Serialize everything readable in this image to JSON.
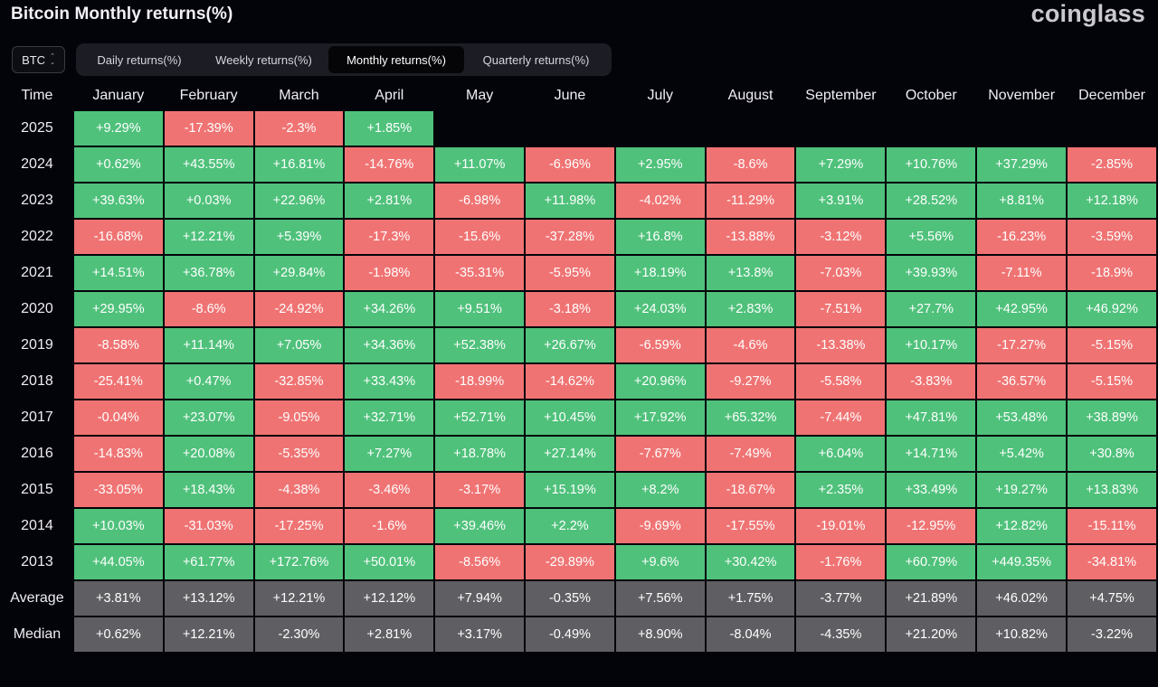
{
  "header": {
    "title": "Bitcoin Monthly returns(%)",
    "logo": "coinglass"
  },
  "asset_select": {
    "value": "BTC",
    "chevron_up": "⌃",
    "chevron_down": "⌄"
  },
  "tabs": [
    {
      "label": "Daily returns(%)",
      "active": false
    },
    {
      "label": "Weekly returns(%)",
      "active": false
    },
    {
      "label": "Monthly returns(%)",
      "active": true
    },
    {
      "label": "Quarterly returns(%)",
      "active": false
    }
  ],
  "colors": {
    "positive": "#4fc17b",
    "negative": "#f07373",
    "stat": "#5f5f63",
    "background": "#03030a"
  },
  "table": {
    "corner_label": "Time",
    "columns": [
      "January",
      "February",
      "March",
      "April",
      "May",
      "June",
      "July",
      "August",
      "September",
      "October",
      "November",
      "December"
    ],
    "rows": [
      {
        "label": "2025",
        "type": "year",
        "values": [
          "+9.29%",
          "-17.39%",
          "-2.3%",
          "+1.85%",
          "",
          "",
          "",
          "",
          "",
          "",
          "",
          ""
        ]
      },
      {
        "label": "2024",
        "type": "year",
        "values": [
          "+0.62%",
          "+43.55%",
          "+16.81%",
          "-14.76%",
          "+11.07%",
          "-6.96%",
          "+2.95%",
          "-8.6%",
          "+7.29%",
          "+10.76%",
          "+37.29%",
          "-2.85%"
        ]
      },
      {
        "label": "2023",
        "type": "year",
        "values": [
          "+39.63%",
          "+0.03%",
          "+22.96%",
          "+2.81%",
          "-6.98%",
          "+11.98%",
          "-4.02%",
          "-11.29%",
          "+3.91%",
          "+28.52%",
          "+8.81%",
          "+12.18%"
        ]
      },
      {
        "label": "2022",
        "type": "year",
        "values": [
          "-16.68%",
          "+12.21%",
          "+5.39%",
          "-17.3%",
          "-15.6%",
          "-37.28%",
          "+16.8%",
          "-13.88%",
          "-3.12%",
          "+5.56%",
          "-16.23%",
          "-3.59%"
        ]
      },
      {
        "label": "2021",
        "type": "year",
        "values": [
          "+14.51%",
          "+36.78%",
          "+29.84%",
          "-1.98%",
          "-35.31%",
          "-5.95%",
          "+18.19%",
          "+13.8%",
          "-7.03%",
          "+39.93%",
          "-7.11%",
          "-18.9%"
        ]
      },
      {
        "label": "2020",
        "type": "year",
        "values": [
          "+29.95%",
          "-8.6%",
          "-24.92%",
          "+34.26%",
          "+9.51%",
          "-3.18%",
          "+24.03%",
          "+2.83%",
          "-7.51%",
          "+27.7%",
          "+42.95%",
          "+46.92%"
        ]
      },
      {
        "label": "2019",
        "type": "year",
        "values": [
          "-8.58%",
          "+11.14%",
          "+7.05%",
          "+34.36%",
          "+52.38%",
          "+26.67%",
          "-6.59%",
          "-4.6%",
          "-13.38%",
          "+10.17%",
          "-17.27%",
          "-5.15%"
        ]
      },
      {
        "label": "2018",
        "type": "year",
        "values": [
          "-25.41%",
          "+0.47%",
          "-32.85%",
          "+33.43%",
          "-18.99%",
          "-14.62%",
          "+20.96%",
          "-9.27%",
          "-5.58%",
          "-3.83%",
          "-36.57%",
          "-5.15%"
        ]
      },
      {
        "label": "2017",
        "type": "year",
        "values": [
          "-0.04%",
          "+23.07%",
          "-9.05%",
          "+32.71%",
          "+52.71%",
          "+10.45%",
          "+17.92%",
          "+65.32%",
          "-7.44%",
          "+47.81%",
          "+53.48%",
          "+38.89%"
        ]
      },
      {
        "label": "2016",
        "type": "year",
        "values": [
          "-14.83%",
          "+20.08%",
          "-5.35%",
          "+7.27%",
          "+18.78%",
          "+27.14%",
          "-7.67%",
          "-7.49%",
          "+6.04%",
          "+14.71%",
          "+5.42%",
          "+30.8%"
        ]
      },
      {
        "label": "2015",
        "type": "year",
        "values": [
          "-33.05%",
          "+18.43%",
          "-4.38%",
          "-3.46%",
          "-3.17%",
          "+15.19%",
          "+8.2%",
          "-18.67%",
          "+2.35%",
          "+33.49%",
          "+19.27%",
          "+13.83%"
        ]
      },
      {
        "label": "2014",
        "type": "year",
        "values": [
          "+10.03%",
          "-31.03%",
          "-17.25%",
          "-1.6%",
          "+39.46%",
          "+2.2%",
          "-9.69%",
          "-17.55%",
          "-19.01%",
          "-12.95%",
          "+12.82%",
          "-15.11%"
        ]
      },
      {
        "label": "2013",
        "type": "year",
        "values": [
          "+44.05%",
          "+61.77%",
          "+172.76%",
          "+50.01%",
          "-8.56%",
          "-29.89%",
          "+9.6%",
          "+30.42%",
          "-1.76%",
          "+60.79%",
          "+449.35%",
          "-34.81%"
        ]
      },
      {
        "label": "Average",
        "type": "stat",
        "values": [
          "+3.81%",
          "+13.12%",
          "+12.21%",
          "+12.12%",
          "+7.94%",
          "-0.35%",
          "+7.56%",
          "+1.75%",
          "-3.77%",
          "+21.89%",
          "+46.02%",
          "+4.75%"
        ]
      },
      {
        "label": "Median",
        "type": "stat",
        "values": [
          "+0.62%",
          "+12.21%",
          "-2.30%",
          "+2.81%",
          "+3.17%",
          "-0.49%",
          "+8.90%",
          "-8.04%",
          "-4.35%",
          "+21.20%",
          "+10.82%",
          "-3.22%"
        ]
      }
    ]
  }
}
